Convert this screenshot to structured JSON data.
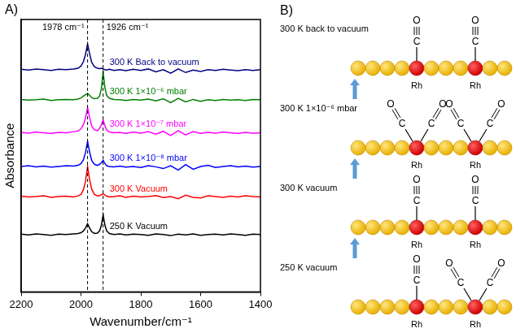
{
  "chart_data": {
    "type": "line",
    "panel_label": "A)",
    "x_label": "Wavenumber/cm⁻¹",
    "y_label": "Absorbance",
    "xlim": [
      2200,
      1400
    ],
    "xticks": [
      2200,
      2000,
      1800,
      1600,
      1400
    ],
    "ylim": [
      0,
      7.6
    ],
    "tick_labels": "x",
    "grid": false,
    "annotations": [
      {
        "x": 1978,
        "label": "1978 cm⁻¹",
        "line_style": "dashed"
      },
      {
        "x": 1926,
        "label": "1926 cm⁻¹",
        "line_style": "dashed"
      }
    ],
    "x": [
      2200,
      2175,
      2150,
      2125,
      2100,
      2075,
      2050,
      2025,
      2010,
      2000,
      1992,
      1985,
      1978,
      1971,
      1964,
      1955,
      1945,
      1938,
      1932,
      1926,
      1920,
      1914,
      1905,
      1890,
      1870,
      1850,
      1825,
      1800,
      1775,
      1750,
      1725,
      1700,
      1675,
      1650,
      1625,
      1600,
      1575,
      1550,
      1525,
      1500,
      1475,
      1450,
      1425,
      1400
    ],
    "series": [
      {
        "name": "300 K Back to vacuum",
        "color": "#000080",
        "values": [
          6.21,
          6.19,
          6.22,
          6.2,
          6.18,
          6.21,
          6.2,
          6.22,
          6.24,
          6.3,
          6.42,
          6.62,
          6.92,
          6.64,
          6.4,
          6.28,
          6.24,
          6.23,
          6.24,
          6.22,
          6.2,
          6.19,
          6.21,
          6.18,
          6.2,
          6.17,
          6.21,
          6.18,
          6.22,
          6.14,
          6.2,
          6.1,
          6.22,
          6.12,
          6.19,
          6.15,
          6.2,
          6.18,
          6.21,
          6.19,
          6.17,
          6.2,
          6.18,
          6.2
        ]
      },
      {
        "name": "300 K 1×10⁻⁶ mbar",
        "color": "#008000",
        "values": [
          5.37,
          5.35,
          5.36,
          5.38,
          5.34,
          5.36,
          5.37,
          5.36,
          5.38,
          5.41,
          5.46,
          5.5,
          5.54,
          5.48,
          5.42,
          5.39,
          5.4,
          5.46,
          5.66,
          6.14,
          5.7,
          5.48,
          5.4,
          5.37,
          5.36,
          5.34,
          5.37,
          5.35,
          5.38,
          5.33,
          5.39,
          5.28,
          5.4,
          5.3,
          5.37,
          5.32,
          5.36,
          5.34,
          5.37,
          5.35,
          5.36,
          5.34,
          5.37,
          5.36
        ]
      },
      {
        "name": "300 K 1×10⁻⁷ mbar",
        "color": "#ff00ff",
        "values": [
          4.45,
          4.43,
          4.46,
          4.44,
          4.42,
          4.45,
          4.44,
          4.47,
          4.49,
          4.55,
          4.66,
          4.85,
          5.14,
          4.86,
          4.62,
          4.52,
          4.5,
          4.56,
          4.66,
          4.8,
          4.64,
          4.52,
          4.46,
          4.44,
          4.45,
          4.42,
          4.46,
          4.43,
          4.47,
          4.4,
          4.48,
          4.36,
          4.5,
          4.38,
          4.47,
          4.42,
          4.45,
          4.43,
          4.46,
          4.44,
          4.42,
          4.45,
          4.43,
          4.44
        ]
      },
      {
        "name": "300 K 1×10⁻⁸ mbar",
        "color": "#0000ff",
        "values": [
          3.5,
          3.52,
          3.49,
          3.51,
          3.48,
          3.5,
          3.52,
          3.51,
          3.53,
          3.58,
          3.68,
          3.88,
          4.2,
          3.9,
          3.66,
          3.56,
          3.53,
          3.56,
          3.6,
          3.67,
          3.58,
          3.52,
          3.5,
          3.49,
          3.51,
          3.48,
          3.5,
          3.47,
          3.52,
          3.49,
          3.44,
          3.52,
          3.4,
          3.55,
          3.42,
          3.5,
          3.53,
          3.47,
          3.5,
          3.52,
          3.49,
          3.51,
          3.48,
          3.5
        ]
      },
      {
        "name": "300 K Vacuum",
        "color": "#ff0000",
        "values": [
          2.67,
          2.65,
          2.66,
          2.68,
          2.64,
          2.66,
          2.67,
          2.65,
          2.68,
          2.72,
          2.85,
          3.08,
          3.5,
          3.12,
          2.86,
          2.72,
          2.68,
          2.69,
          2.71,
          2.74,
          2.7,
          2.67,
          2.65,
          2.66,
          2.68,
          2.64,
          2.67,
          2.65,
          2.66,
          2.69,
          2.63,
          2.66,
          2.6,
          2.7,
          2.64,
          2.62,
          2.68,
          2.66,
          2.64,
          2.67,
          2.65,
          2.68,
          2.66,
          2.65
        ]
      },
      {
        "name": "250 K Vacuum",
        "color": "#000000",
        "values": [
          1.61,
          1.59,
          1.62,
          1.6,
          1.58,
          1.61,
          1.6,
          1.62,
          1.63,
          1.65,
          1.7,
          1.78,
          1.9,
          1.78,
          1.68,
          1.63,
          1.64,
          1.7,
          1.85,
          2.15,
          1.86,
          1.7,
          1.63,
          1.6,
          1.62,
          1.59,
          1.61,
          1.6,
          1.58,
          1.62,
          1.6,
          1.57,
          1.61,
          1.59,
          1.62,
          1.58,
          1.6,
          1.61,
          1.59,
          1.62,
          1.6,
          1.58,
          1.61,
          1.6
        ]
      }
    ]
  },
  "diagram": {
    "panel_label": "B)",
    "metal_label": "Rh",
    "carbon_label": "C",
    "oxygen_label": "O",
    "rows": [
      {
        "label": "300 K back to vacuum",
        "co_per_rh": [
          1,
          1
        ]
      },
      {
        "label": "300 K  1×10⁻⁶ mbar",
        "co_per_rh": [
          2,
          2
        ]
      },
      {
        "label": "300 K vacuum",
        "co_per_rh": [
          1,
          1
        ]
      },
      {
        "label": "250 K vacuum",
        "co_per_rh": [
          1,
          2
        ]
      }
    ]
  }
}
